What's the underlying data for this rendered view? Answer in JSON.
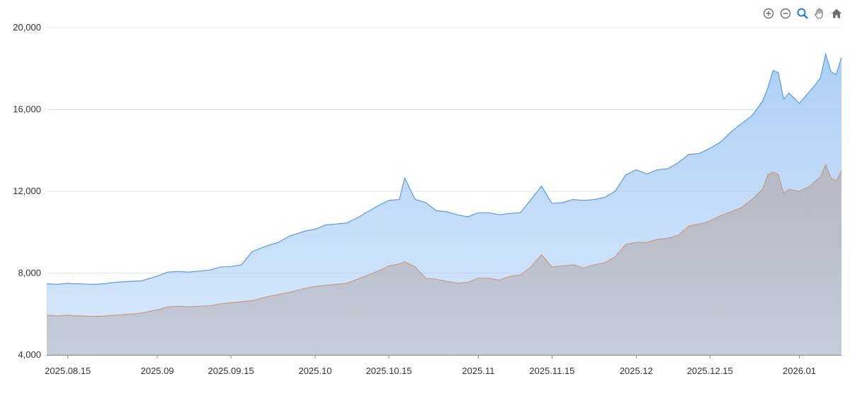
{
  "toolbar": {
    "icons": [
      "zoom-in-icon",
      "zoom-out-icon",
      "zoom-select-icon",
      "pan-hand-icon",
      "home-reset-icon"
    ],
    "active": "zoom-select-icon"
  },
  "chart_data": {
    "type": "area",
    "title": "",
    "xlabel": "",
    "ylabel": "",
    "x_range": [
      "2025-08-11",
      "2026-01-09"
    ],
    "ylim": [
      4000,
      20000
    ],
    "y_ticks": [
      4000,
      8000,
      12000,
      16000,
      20000
    ],
    "y_tick_labels": [
      "4,000",
      "8,000",
      "12,000",
      "16,000",
      "20,000"
    ],
    "x_ticks": [
      "2025-08-15",
      "2025-09-01",
      "2025-09-15",
      "2025-10-01",
      "2025-10-15",
      "2025-11-01",
      "2025-11-15",
      "2025-12-01",
      "2025-12-15",
      "2026-01-01"
    ],
    "x_tick_labels": [
      "2025.08.15",
      "2025.09",
      "2025.09.15",
      "2025.10",
      "2025.10.15",
      "2025.11",
      "2025.11.15",
      "2025.12",
      "2025.12.15",
      "2026.01"
    ],
    "grid": true,
    "legend": "none",
    "colors": {
      "upper_line": "#5b9be0",
      "upper_fill": "#a9cdf6",
      "lower_line": "#c79a86",
      "lower_fill": "#b7b7bf",
      "grid": "#e3e3e3",
      "axis": "#888888"
    },
    "series": [
      {
        "x": [
          "2025-08-11",
          "2025-08-13",
          "2025-08-15",
          "2025-08-16",
          "2025-08-18",
          "2025-08-20",
          "2025-08-22",
          "2025-08-24",
          "2025-08-27",
          "2025-08-29",
          "2025-09-01",
          "2025-09-03",
          "2025-09-05",
          "2025-09-07",
          "2025-09-09",
          "2025-09-11",
          "2025-09-13",
          "2025-09-15",
          "2025-09-17",
          "2025-09-19",
          "2025-09-22",
          "2025-09-24",
          "2025-09-26",
          "2025-09-29",
          "2025-10-01",
          "2025-10-03",
          "2025-10-05",
          "2025-10-07",
          "2025-10-09",
          "2025-10-11",
          "2025-10-13",
          "2025-10-15",
          "2025-10-17",
          "2025-10-18",
          "2025-10-20",
          "2025-10-22",
          "2025-10-24",
          "2025-10-26",
          "2025-10-28",
          "2025-10-30",
          "2025-11-01",
          "2025-11-03",
          "2025-11-05",
          "2025-11-07",
          "2025-11-09",
          "2025-11-11",
          "2025-11-13",
          "2025-11-15",
          "2025-11-17",
          "2025-11-19",
          "2025-11-21",
          "2025-11-23",
          "2025-11-25",
          "2025-11-27",
          "2025-11-29",
          "2025-12-01",
          "2025-12-03",
          "2025-12-05",
          "2025-12-07",
          "2025-12-09",
          "2025-12-11",
          "2025-12-13",
          "2025-12-15",
          "2025-12-17",
          "2025-12-19",
          "2025-12-21",
          "2025-12-23",
          "2025-12-25",
          "2025-12-26",
          "2025-12-27",
          "2025-12-28",
          "2025-12-29",
          "2025-12-30",
          "2026-01-01",
          "2026-01-03",
          "2026-01-04",
          "2026-01-05",
          "2026-01-06",
          "2026-01-07",
          "2026-01-08",
          "2026-01-09"
        ],
        "values": [
          7480,
          7450,
          7500,
          7480,
          7470,
          7450,
          7480,
          7550,
          7600,
          7620,
          7850,
          8050,
          8080,
          8050,
          8100,
          8150,
          8300,
          8320,
          8400,
          9050,
          9350,
          9500,
          9800,
          10050,
          10150,
          10350,
          10400,
          10450,
          10700,
          11000,
          11300,
          11550,
          11600,
          12650,
          11600,
          11450,
          11050,
          11000,
          10850,
          10750,
          10950,
          10950,
          10850,
          10920,
          10950,
          11600,
          12250,
          11400,
          11450,
          11600,
          11550,
          11600,
          11700,
          12000,
          12800,
          13050,
          12850,
          13050,
          13100,
          13400,
          13800,
          13850,
          14100,
          14400,
          14900,
          15300,
          15700,
          16400,
          17050,
          17900,
          17800,
          16500,
          16800,
          16300,
          16900,
          17200,
          17550,
          18700,
          17850,
          17700,
          18550
        ]
      },
      {
        "x": [
          "2025-08-11",
          "2025-08-13",
          "2025-08-15",
          "2025-08-16",
          "2025-08-18",
          "2025-08-20",
          "2025-08-22",
          "2025-08-24",
          "2025-08-27",
          "2025-08-29",
          "2025-09-01",
          "2025-09-03",
          "2025-09-05",
          "2025-09-07",
          "2025-09-09",
          "2025-09-11",
          "2025-09-13",
          "2025-09-15",
          "2025-09-17",
          "2025-09-19",
          "2025-09-22",
          "2025-09-24",
          "2025-09-26",
          "2025-09-29",
          "2025-10-01",
          "2025-10-03",
          "2025-10-05",
          "2025-10-07",
          "2025-10-09",
          "2025-10-11",
          "2025-10-13",
          "2025-10-15",
          "2025-10-17",
          "2025-10-18",
          "2025-10-20",
          "2025-10-22",
          "2025-10-24",
          "2025-10-26",
          "2025-10-28",
          "2025-10-30",
          "2025-11-01",
          "2025-11-03",
          "2025-11-05",
          "2025-11-07",
          "2025-11-09",
          "2025-11-11",
          "2025-11-13",
          "2025-11-15",
          "2025-11-17",
          "2025-11-19",
          "2025-11-21",
          "2025-11-23",
          "2025-11-25",
          "2025-11-27",
          "2025-11-29",
          "2025-12-01",
          "2025-12-03",
          "2025-12-05",
          "2025-12-07",
          "2025-12-09",
          "2025-12-11",
          "2025-12-13",
          "2025-12-15",
          "2025-12-17",
          "2025-12-19",
          "2025-12-21",
          "2025-12-23",
          "2025-12-25",
          "2025-12-26",
          "2025-12-27",
          "2025-12-28",
          "2025-12-29",
          "2025-12-30",
          "2026-01-01",
          "2026-01-03",
          "2026-01-04",
          "2026-01-05",
          "2026-01-06",
          "2026-01-07",
          "2026-01-08",
          "2026-01-09"
        ],
        "values": [
          5950,
          5900,
          5950,
          5920,
          5900,
          5880,
          5900,
          5950,
          6000,
          6050,
          6200,
          6350,
          6380,
          6350,
          6380,
          6400,
          6500,
          6550,
          6600,
          6650,
          6850,
          6950,
          7050,
          7250,
          7350,
          7400,
          7450,
          7500,
          7700,
          7900,
          8100,
          8350,
          8450,
          8550,
          8300,
          7750,
          7700,
          7600,
          7500,
          7550,
          7750,
          7750,
          7650,
          7850,
          7900,
          8300,
          8900,
          8300,
          8350,
          8400,
          8250,
          8400,
          8500,
          8800,
          9400,
          9500,
          9500,
          9650,
          9700,
          9850,
          10300,
          10400,
          10550,
          10800,
          11000,
          11200,
          11600,
          12100,
          12800,
          12950,
          12800,
          11900,
          12100,
          12000,
          12250,
          12500,
          12700,
          13300,
          12650,
          12500,
          13000
        ]
      }
    ]
  }
}
